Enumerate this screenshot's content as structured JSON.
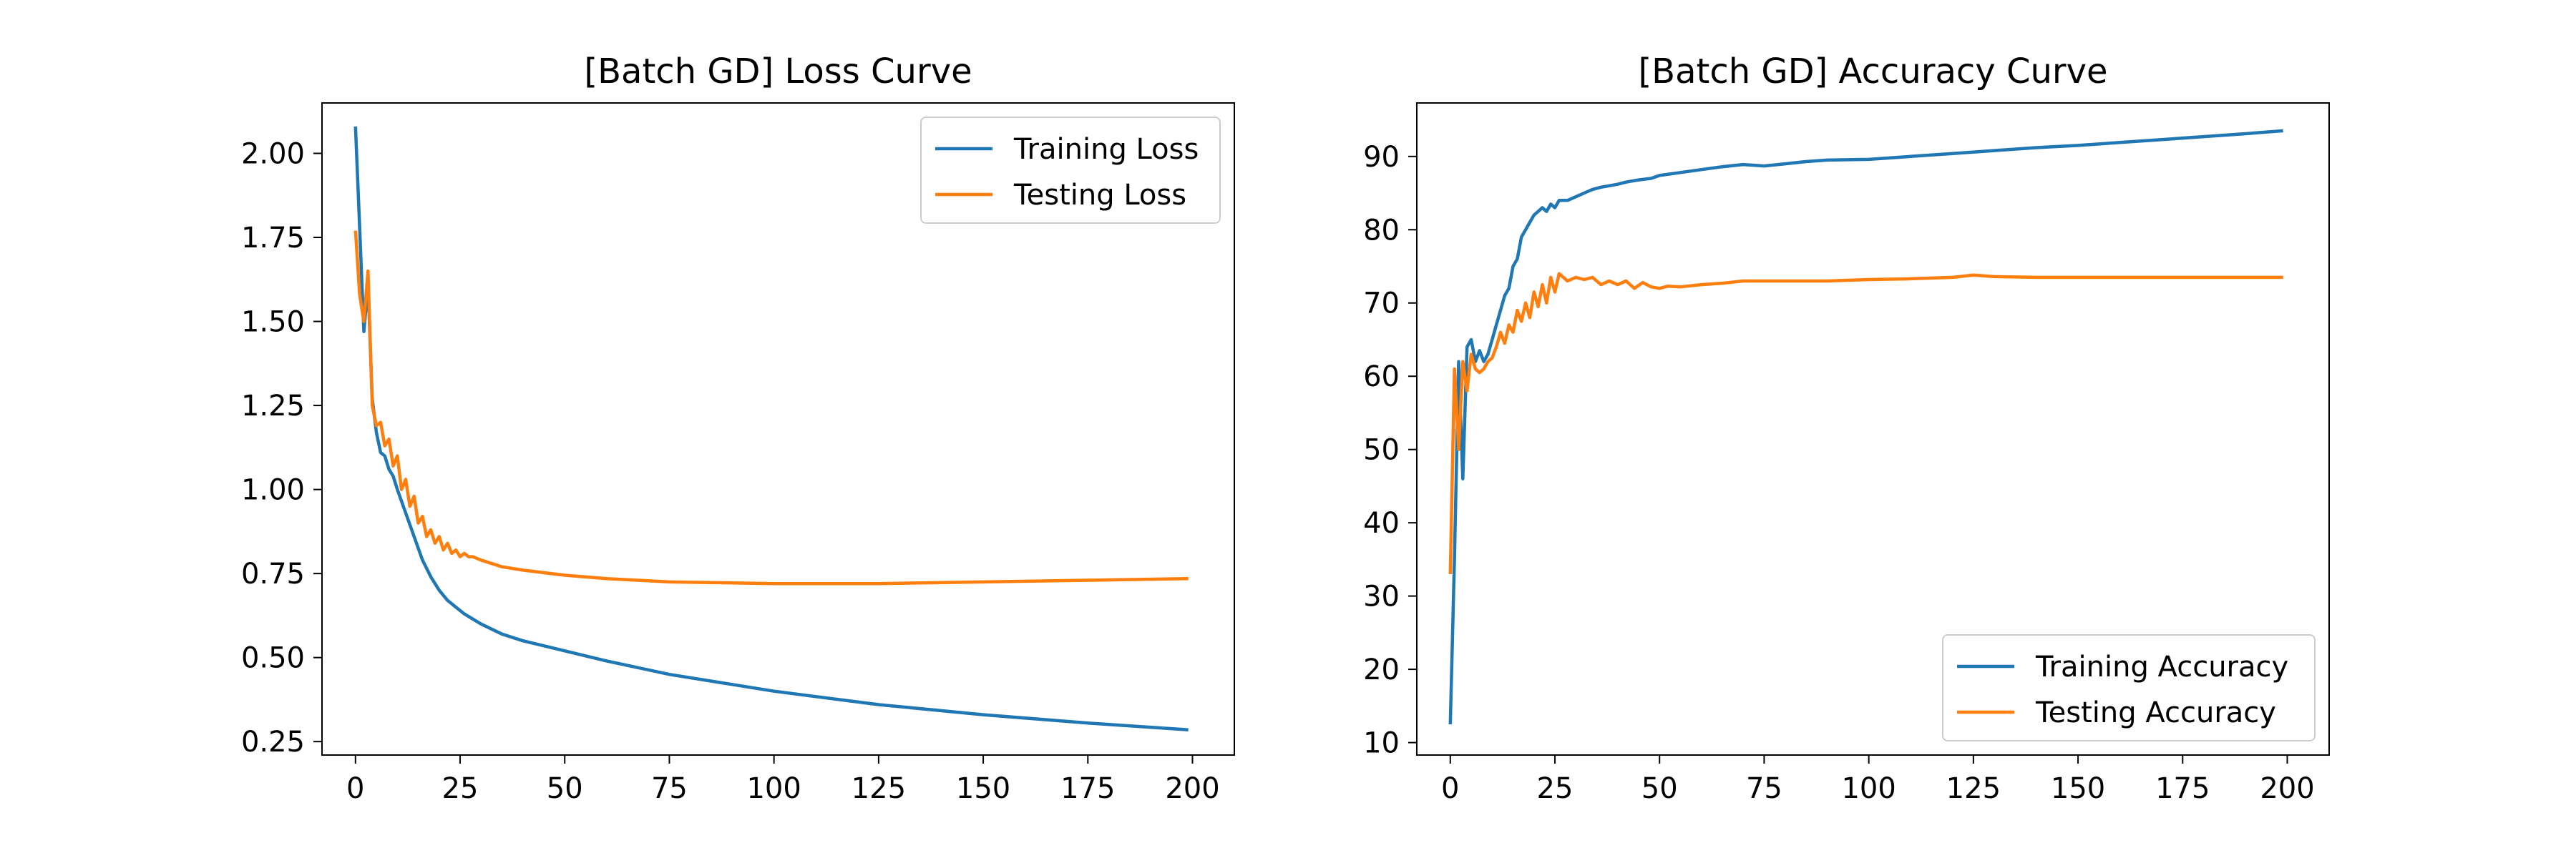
{
  "chart_data": [
    {
      "type": "line",
      "title": "[Batch GD] Loss Curve",
      "xlabel": "",
      "ylabel": "",
      "xlim": [
        -8,
        210
      ],
      "ylim": [
        0.21,
        2.15
      ],
      "xticks": [
        0,
        25,
        50,
        75,
        100,
        125,
        150,
        175,
        200
      ],
      "xtick_labels": [
        "0",
        "25",
        "50",
        "75",
        "100",
        "125",
        "150",
        "175",
        "200"
      ],
      "yticks": [
        0.25,
        0.5,
        0.75,
        1.0,
        1.25,
        1.5,
        1.75,
        2.0
      ],
      "ytick_labels": [
        "0.25",
        "0.50",
        "0.75",
        "1.00",
        "1.25",
        "1.50",
        "1.75",
        "2.00"
      ],
      "grid": false,
      "legend_position": "upper right",
      "series": [
        {
          "name": "Training Loss",
          "color": "#1f77b4",
          "x": [
            0,
            1,
            2,
            3,
            4,
            5,
            6,
            7,
            8,
            9,
            10,
            12,
            14,
            16,
            18,
            20,
            22,
            24,
            26,
            30,
            35,
            40,
            50,
            60,
            75,
            100,
            125,
            150,
            175,
            199
          ],
          "values": [
            2.08,
            1.78,
            1.47,
            1.61,
            1.27,
            1.17,
            1.11,
            1.1,
            1.06,
            1.04,
            1.0,
            0.93,
            0.86,
            0.79,
            0.74,
            0.7,
            0.67,
            0.65,
            0.63,
            0.6,
            0.57,
            0.55,
            0.52,
            0.49,
            0.45,
            0.4,
            0.36,
            0.33,
            0.305,
            0.285
          ]
        },
        {
          "name": "Testing Loss",
          "color": "#ff7f0e",
          "x": [
            0,
            1,
            2,
            3,
            4,
            5,
            6,
            7,
            8,
            9,
            10,
            11,
            12,
            13,
            14,
            15,
            16,
            17,
            18,
            19,
            20,
            21,
            22,
            23,
            24,
            25,
            26,
            27,
            28,
            30,
            35,
            40,
            50,
            60,
            75,
            100,
            125,
            150,
            175,
            199
          ],
          "values": [
            1.77,
            1.58,
            1.5,
            1.65,
            1.25,
            1.19,
            1.2,
            1.13,
            1.15,
            1.07,
            1.1,
            1.0,
            1.03,
            0.95,
            0.98,
            0.9,
            0.92,
            0.86,
            0.88,
            0.84,
            0.86,
            0.82,
            0.84,
            0.81,
            0.82,
            0.8,
            0.81,
            0.8,
            0.8,
            0.79,
            0.77,
            0.76,
            0.745,
            0.735,
            0.725,
            0.72,
            0.72,
            0.725,
            0.73,
            0.735
          ]
        }
      ]
    },
    {
      "type": "line",
      "title": "[Batch GD] Accuracy Curve",
      "xlabel": "",
      "ylabel": "",
      "xlim": [
        -8,
        210
      ],
      "ylim": [
        8.3,
        97.3
      ],
      "xticks": [
        0,
        25,
        50,
        75,
        100,
        125,
        150,
        175,
        200
      ],
      "xtick_labels": [
        "0",
        "25",
        "50",
        "75",
        "100",
        "125",
        "150",
        "175",
        "200"
      ],
      "yticks": [
        10,
        20,
        30,
        40,
        50,
        60,
        70,
        80,
        90
      ],
      "ytick_labels": [
        "10",
        "20",
        "30",
        "40",
        "50",
        "60",
        "70",
        "80",
        "90"
      ],
      "grid": false,
      "legend_position": "lower right",
      "series": [
        {
          "name": "Training Accuracy",
          "color": "#1f77b4",
          "x": [
            0,
            1,
            2,
            3,
            4,
            5,
            6,
            7,
            8,
            9,
            10,
            11,
            12,
            13,
            14,
            15,
            16,
            17,
            18,
            19,
            20,
            21,
            22,
            23,
            24,
            25,
            26,
            28,
            30,
            32,
            34,
            36,
            38,
            40,
            42,
            45,
            48,
            50,
            55,
            60,
            65,
            70,
            75,
            80,
            85,
            90,
            100,
            110,
            120,
            130,
            140,
            150,
            160,
            170,
            180,
            190,
            199
          ],
          "values": [
            12.5,
            35,
            62,
            46,
            64,
            65,
            62,
            63.5,
            62,
            63,
            65,
            67,
            69,
            71,
            72,
            75,
            76,
            79,
            80,
            81,
            82,
            82.5,
            83,
            82.5,
            83.5,
            83,
            84,
            84,
            84.5,
            85,
            85.5,
            85.8,
            86,
            86.2,
            86.5,
            86.8,
            87,
            87.4,
            87.8,
            88.2,
            88.6,
            88.9,
            88.7,
            89,
            89.3,
            89.5,
            89.6,
            90,
            90.4,
            90.8,
            91.2,
            91.5,
            91.9,
            92.3,
            92.7,
            93.1,
            93.5
          ]
        },
        {
          "name": "Testing Accuracy",
          "color": "#ff7f0e",
          "x": [
            0,
            1,
            2,
            3,
            4,
            5,
            6,
            7,
            8,
            9,
            10,
            11,
            12,
            13,
            14,
            15,
            16,
            17,
            18,
            19,
            20,
            21,
            22,
            23,
            24,
            25,
            26,
            28,
            30,
            32,
            34,
            36,
            38,
            40,
            42,
            44,
            46,
            48,
            50,
            52,
            55,
            60,
            65,
            70,
            80,
            90,
            100,
            110,
            120,
            125,
            130,
            140,
            160,
            180,
            199
          ],
          "values": [
            33,
            61,
            50,
            62,
            58,
            63,
            61,
            60.5,
            61,
            62,
            62.5,
            64,
            66,
            64.5,
            67,
            66,
            69,
            67.5,
            70,
            68,
            71.5,
            69.5,
            72.5,
            70,
            73.5,
            71.5,
            74,
            73,
            73.5,
            73.2,
            73.5,
            72.5,
            73,
            72.5,
            73,
            72,
            72.8,
            72.2,
            72,
            72.3,
            72.2,
            72.5,
            72.7,
            73,
            73,
            73,
            73.2,
            73.3,
            73.5,
            73.8,
            73.6,
            73.5,
            73.5,
            73.5,
            73.5
          ]
        }
      ]
    }
  ]
}
